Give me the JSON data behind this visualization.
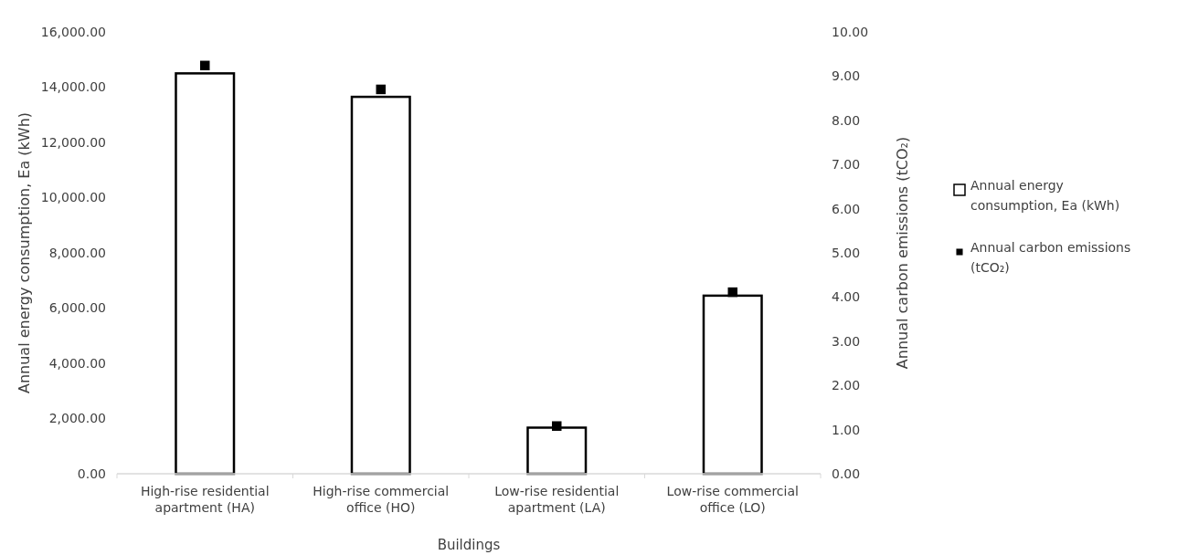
{
  "chart_data": {
    "type": "bar",
    "xlabel": "Buildings",
    "ylabel": "Annual energy consumption, Ea (kWh)",
    "y2label": "Annual carbon emissions (tCO₂)",
    "categories": [
      "High-rise residential apartment (HA)",
      "High-rise commercial office (HO)",
      "Low-rise residential apartment (LA)",
      "Low-rise commercial office (LO)"
    ],
    "series": [
      {
        "name": "Annual energy consumption, Ea (kWh)",
        "color": "#ffffff",
        "values": [
          14500,
          13650,
          1670,
          6450
        ]
      },
      {
        "name": "Annual carbon emissions (tCO₂)",
        "type": "scatter",
        "axis": "y2",
        "color": "#000000",
        "values": [
          9.24,
          8.7,
          1.08,
          4.11
        ]
      }
    ],
    "ylim": [
      0,
      16000
    ],
    "yticks": [
      {
        "value": 0,
        "label": "0.00"
      },
      {
        "value": 2000,
        "label": "2,000.00"
      },
      {
        "value": 4000,
        "label": "4,000.00"
      },
      {
        "value": 6000,
        "label": "6,000.00"
      },
      {
        "value": 8000,
        "label": "8,000.00"
      },
      {
        "value": 10000,
        "label": "10,000.00"
      },
      {
        "value": 12000,
        "label": "12,000.00"
      },
      {
        "value": 14000,
        "label": "14,000.00"
      },
      {
        "value": 16000,
        "label": "16,000.00"
      }
    ],
    "y2lim": [
      0,
      10
    ],
    "y2ticks": [
      {
        "value": 0,
        "label": "0.00"
      },
      {
        "value": 1,
        "label": "1.00"
      },
      {
        "value": 2,
        "label": "2.00"
      },
      {
        "value": 3,
        "label": "3.00"
      },
      {
        "value": 4,
        "label": "4.00"
      },
      {
        "value": 5,
        "label": "5.00"
      },
      {
        "value": 6,
        "label": "6.00"
      },
      {
        "value": 7,
        "label": "7.00"
      },
      {
        "value": 8,
        "label": "8.00"
      },
      {
        "value": 9,
        "label": "9.00"
      },
      {
        "value": 10,
        "label": "10.00"
      }
    ],
    "marker": "square",
    "legend": "right",
    "grid": false
  }
}
